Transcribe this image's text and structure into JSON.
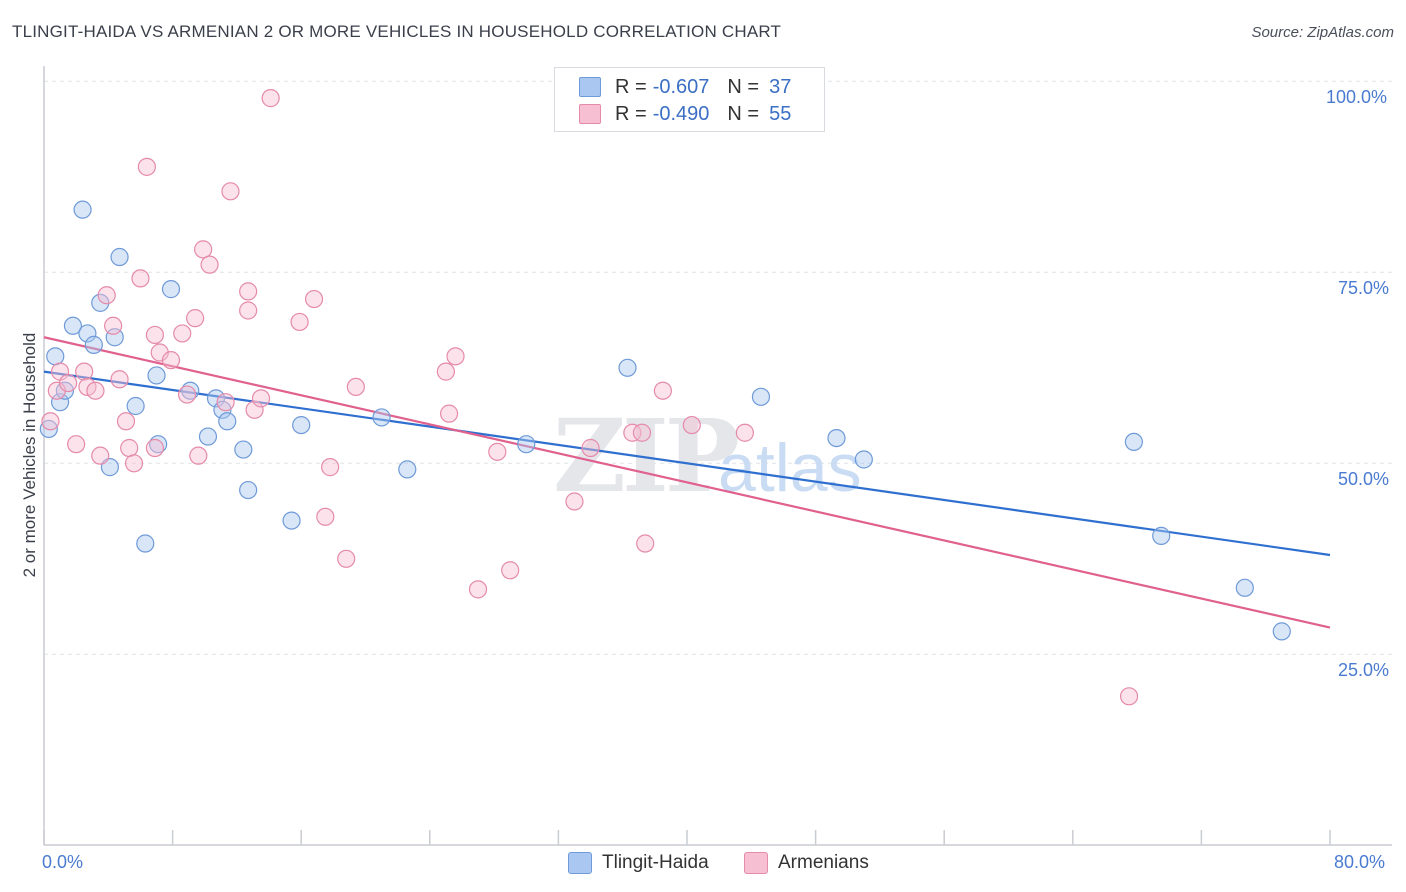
{
  "title": "TLINGIT-HAIDA VS ARMENIAN 2 OR MORE VEHICLES IN HOUSEHOLD CORRELATION CHART",
  "source": "Source: ZipAtlas.com",
  "watermark": {
    "zip": "ZIP",
    "atlas": "atlas"
  },
  "legend": {
    "rows": [
      {
        "r_label": "R =",
        "r_value": "-0.607",
        "n_label": "N =",
        "n_value": "37",
        "color": "#a9c7f0",
        "border": "#6f9ad8"
      },
      {
        "r_label": "R =",
        "r_value": "-0.490",
        "n_label": "N =",
        "n_value": "55",
        "color": "#f7bfd2",
        "border": "#e58aaa"
      }
    ]
  },
  "bottom_legend": {
    "series1": "Tlingit-Haida",
    "series2": "Armenians"
  },
  "chart_data": {
    "type": "scatter",
    "title": "TLINGIT-HAIDA VS ARMENIAN 2 OR MORE VEHICLES IN HOUSEHOLD CORRELATION CHART",
    "xlabel": "",
    "ylabel": "2 or more Vehicles in Household",
    "xlim": [
      0,
      80
    ],
    "ylim": [
      0,
      105
    ],
    "x_tick_labels": [
      "0.0%",
      "80.0%"
    ],
    "y_ticks": [
      25,
      50,
      75,
      100
    ],
    "y_tick_labels": [
      "25.0%",
      "50.0%",
      "75.0%",
      "100.0%"
    ],
    "grid": true,
    "legend_position": "top-center",
    "series": [
      {
        "name": "Tlingit-Haida",
        "color": "#6f9ad8",
        "fill": "#a9c7f0",
        "trend_color": "#2f6fd0",
        "trend": {
          "x0": 0,
          "y0": 62.0,
          "x1": 80,
          "y1": 38.0
        },
        "points": [
          [
            0.3,
            54.5
          ],
          [
            0.7,
            64.0
          ],
          [
            1.0,
            58.0
          ],
          [
            1.3,
            59.5
          ],
          [
            1.8,
            68.0
          ],
          [
            2.4,
            83.2
          ],
          [
            2.7,
            67.0
          ],
          [
            3.1,
            65.5
          ],
          [
            3.5,
            71.0
          ],
          [
            4.1,
            49.5
          ],
          [
            4.4,
            66.5
          ],
          [
            4.7,
            77.0
          ],
          [
            5.7,
            57.5
          ],
          [
            6.3,
            39.5
          ],
          [
            7.0,
            61.5
          ],
          [
            7.1,
            52.5
          ],
          [
            7.9,
            72.8
          ],
          [
            9.1,
            59.5
          ],
          [
            10.2,
            53.5
          ],
          [
            10.7,
            58.5
          ],
          [
            11.1,
            57.0
          ],
          [
            11.4,
            55.5
          ],
          [
            12.4,
            51.8
          ],
          [
            12.7,
            46.5
          ],
          [
            15.4,
            42.5
          ],
          [
            16.0,
            55.0
          ],
          [
            21.0,
            56.0
          ],
          [
            22.6,
            49.2
          ],
          [
            30.0,
            52.5
          ],
          [
            36.3,
            62.5
          ],
          [
            44.6,
            58.7
          ],
          [
            49.3,
            53.3
          ],
          [
            51.0,
            50.5
          ],
          [
            67.8,
            52.8
          ],
          [
            69.5,
            40.5
          ],
          [
            74.7,
            33.7
          ],
          [
            77.0,
            28.0
          ]
        ]
      },
      {
        "name": "Armenians",
        "color": "#e58aaa",
        "fill": "#f7bfd2",
        "trend_color": "#e0608e",
        "trend": {
          "x0": 0,
          "y0": 66.5,
          "x1": 80,
          "y1": 28.5
        },
        "points": [
          [
            0.4,
            55.5
          ],
          [
            0.8,
            59.5
          ],
          [
            1.0,
            62.0
          ],
          [
            1.5,
            60.5
          ],
          [
            2.0,
            52.5
          ],
          [
            2.5,
            62.0
          ],
          [
            2.7,
            60.0
          ],
          [
            3.2,
            59.5
          ],
          [
            3.5,
            51.0
          ],
          [
            3.9,
            72.0
          ],
          [
            4.3,
            68.0
          ],
          [
            4.7,
            61.0
          ],
          [
            5.1,
            55.5
          ],
          [
            5.3,
            52.0
          ],
          [
            5.6,
            50.0
          ],
          [
            6.0,
            74.2
          ],
          [
            6.4,
            88.8
          ],
          [
            6.9,
            52.0
          ],
          [
            6.9,
            66.8
          ],
          [
            7.2,
            64.5
          ],
          [
            7.9,
            63.5
          ],
          [
            8.6,
            67.0
          ],
          [
            8.9,
            59.0
          ],
          [
            9.4,
            69.0
          ],
          [
            9.6,
            51.0
          ],
          [
            9.9,
            78.0
          ],
          [
            10.3,
            76.0
          ],
          [
            11.3,
            58.0
          ],
          [
            11.6,
            85.6
          ],
          [
            12.7,
            70.0
          ],
          [
            12.7,
            72.5
          ],
          [
            13.1,
            57.0
          ],
          [
            13.5,
            58.5
          ],
          [
            14.1,
            97.8
          ],
          [
            15.9,
            68.5
          ],
          [
            16.8,
            71.5
          ],
          [
            17.5,
            43.0
          ],
          [
            17.8,
            49.5
          ],
          [
            18.8,
            37.5
          ],
          [
            19.4,
            60.0
          ],
          [
            25.0,
            62.0
          ],
          [
            25.2,
            56.5
          ],
          [
            25.6,
            64.0
          ],
          [
            27.0,
            33.5
          ],
          [
            28.2,
            51.5
          ],
          [
            29.0,
            36.0
          ],
          [
            33.0,
            45.0
          ],
          [
            34.0,
            52.0
          ],
          [
            36.6,
            54.0
          ],
          [
            37.4,
            39.5
          ],
          [
            38.5,
            59.5
          ],
          [
            40.3,
            55.0
          ],
          [
            43.6,
            54.0
          ],
          [
            67.5,
            19.5
          ],
          [
            37.2,
            54.0
          ]
        ]
      }
    ]
  }
}
